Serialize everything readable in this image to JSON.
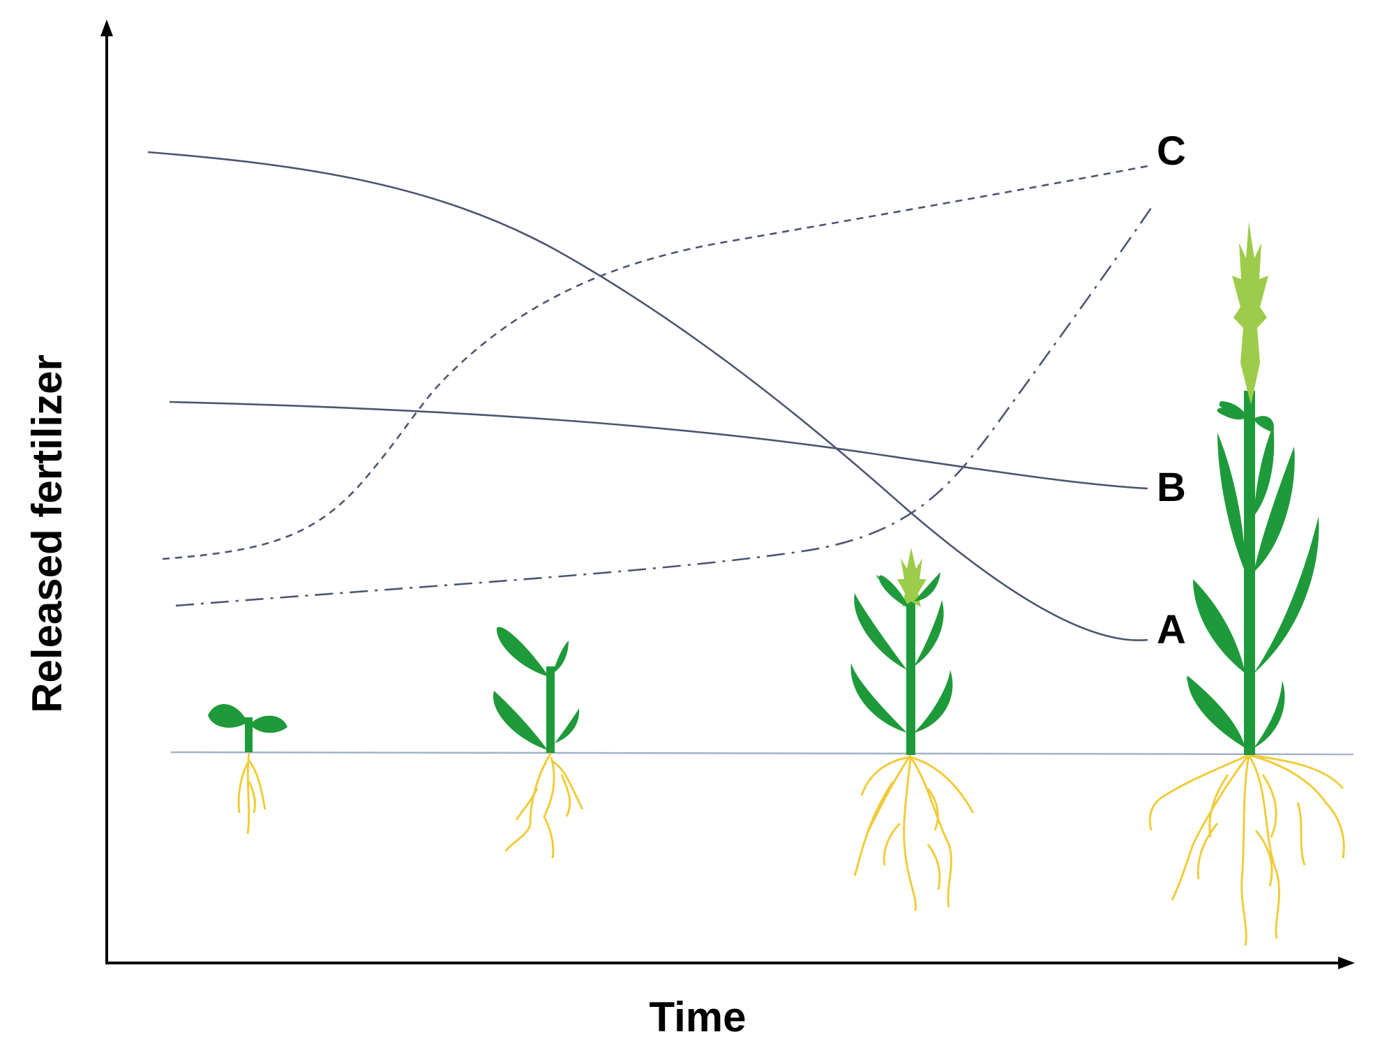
{
  "chart_data": {
    "type": "line",
    "xlabel": "Time",
    "ylabel": "Released fertilizer",
    "series": [
      {
        "name": "A",
        "style": "solid",
        "description": "high initial release declining over time"
      },
      {
        "name": "B",
        "style": "solid",
        "description": "nearly constant, slightly declining release"
      },
      {
        "name": "C",
        "style": "dashed",
        "description": "sigmoidal increase in release"
      },
      {
        "name": "",
        "style": "dash-dot",
        "description": "slow then accelerating release"
      }
    ],
    "growth_stages": 4
  },
  "colors": {
    "axis": "#000000",
    "curve": "#4a5570",
    "ground": "#9fb3c8",
    "leaf": "#1f9a3a",
    "tassel": "#9ccc4a",
    "root": "#f0cc3a"
  }
}
